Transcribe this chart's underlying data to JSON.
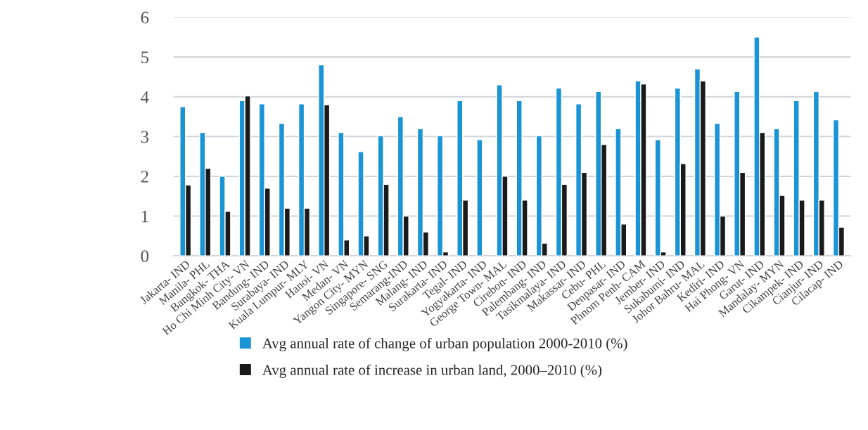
{
  "chart_data": {
    "type": "bar",
    "categories": [
      "Jakarta- IND",
      "Manila- PHL",
      "Bangkok- THA",
      "Ho Chi Minh City- VN",
      "Bandung- IND",
      "Surabaya- IND",
      "Kuala Lumpur- MLY",
      "Hanoi- VN",
      "Medan- VN",
      "Yangon City- MYN",
      "Singapore- SNG",
      "Semarang-IND",
      "Malang- IND",
      "Surakarta- IND",
      "Tegal- IND",
      "Yogyakarta- IND",
      "George Town- MAL",
      "Cirebon- IND",
      "Palembang- IND",
      "Tasikmalaya- IND",
      "Makassar- IND",
      "Cebu- PHL",
      "Denpasar- IND",
      "Phnom Penh- CAM",
      "Jember- IND",
      "Sukabumi- IND",
      "Johor Bahru- MAL",
      "Kediri- IND",
      "Hai Phong- VN",
      "Garut- IND",
      "Mandalay- MYN",
      "Cikampek- IND",
      "Cianjur- IND",
      "Cilacap- IND"
    ],
    "series": [
      {
        "name": "Avg annual rate of change of urban population 2000-2010 (%)",
        "color": "#1a94d4",
        "values": [
          3.75,
          3.1,
          2.0,
          3.9,
          3.82,
          3.33,
          3.82,
          4.8,
          3.1,
          2.62,
          3.02,
          3.5,
          3.2,
          3.02,
          3.9,
          2.92,
          4.3,
          3.9,
          3.02,
          4.22,
          3.82,
          4.13,
          3.2,
          4.4,
          2.92,
          4.22,
          4.7,
          3.33,
          4.13,
          5.5,
          3.2,
          3.9,
          4.13,
          3.42
        ]
      },
      {
        "name": "Avg annual rate of increase in urban land, 2000–2010 (%)",
        "color": "#1a1a1a",
        "values": [
          1.78,
          2.2,
          1.12,
          4.02,
          1.7,
          1.2,
          1.2,
          3.8,
          0.4,
          0.5,
          1.8,
          1.0,
          0.6,
          0.1,
          1.4,
          null,
          2.0,
          1.4,
          0.32,
          1.8,
          2.1,
          2.8,
          0.8,
          4.32,
          0.1,
          2.32,
          4.4,
          1.0,
          2.1,
          3.1,
          1.52,
          1.4,
          1.4,
          0.72
        ]
      }
    ],
    "ylim": [
      0,
      6
    ],
    "yticks": [
      0,
      1,
      2,
      3,
      4,
      5,
      6
    ],
    "grid": "y",
    "legend": "bottom"
  }
}
